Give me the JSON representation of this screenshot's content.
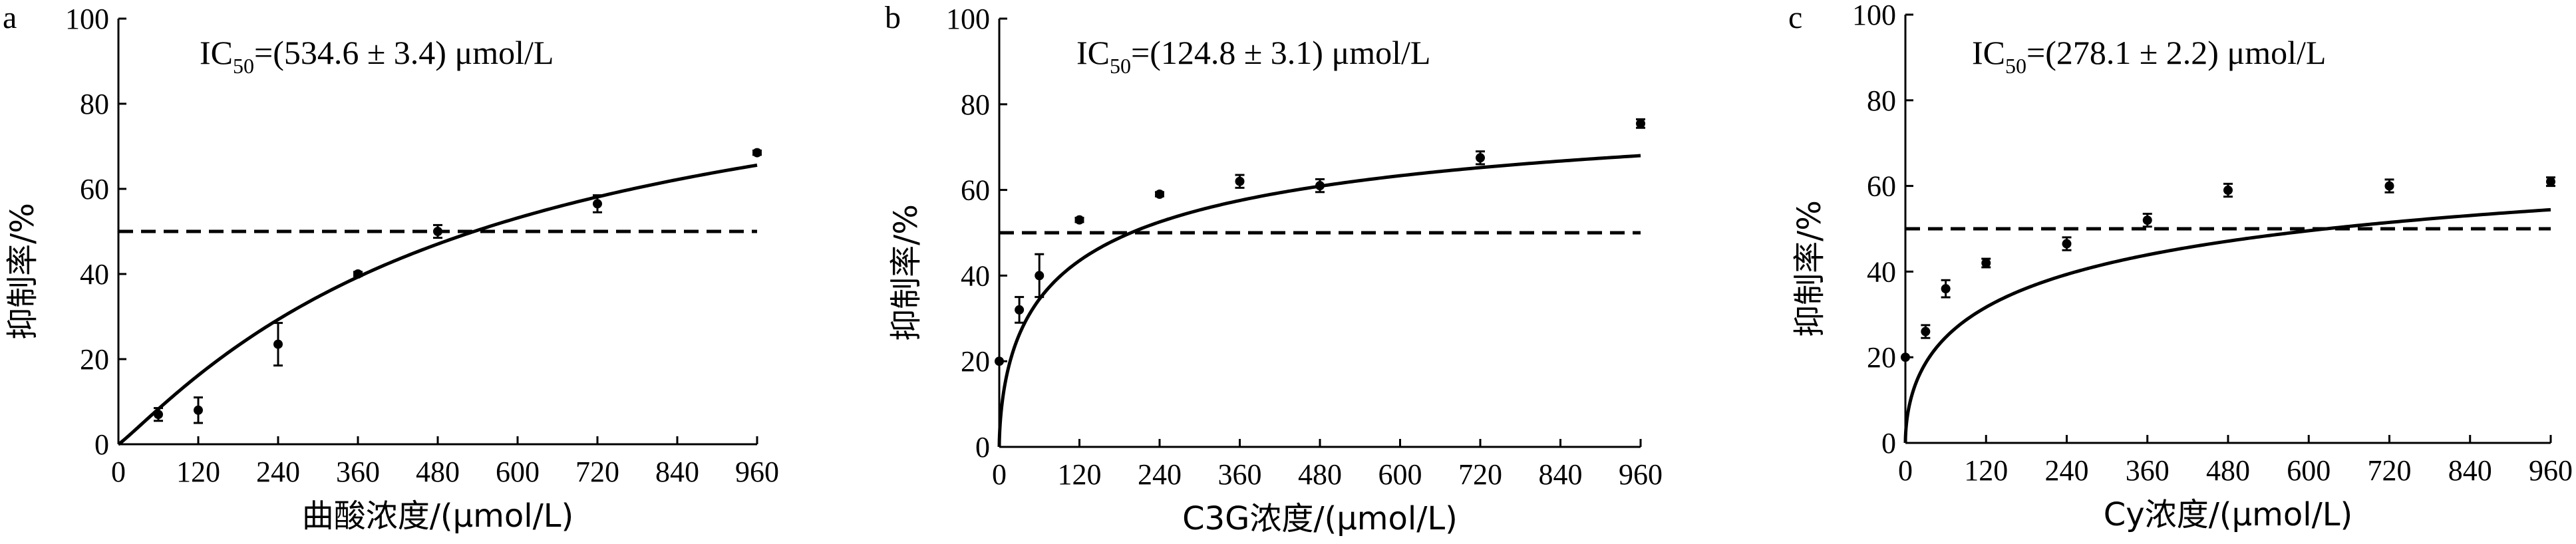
{
  "chart_data": [
    {
      "type": "scatter",
      "panel": "a",
      "annotation": {
        "prefix": "IC",
        "sub": "50",
        "text": "=(534.6 ± 3.4) μmol/L"
      },
      "xlabel": "曲酸浓度/(μmol/L)",
      "ylabel": "抑制率/%",
      "xlim": [
        0,
        960
      ],
      "ylim": [
        0,
        100
      ],
      "xticks": [
        "0",
        "120",
        "240",
        "360",
        "480",
        "600",
        "720",
        "840",
        "960"
      ],
      "yticks": [
        "0",
        "20",
        "40",
        "60",
        "80",
        "100"
      ],
      "reference_line": 50,
      "points": [
        {
          "x": 0,
          "y": 0,
          "err": 0
        },
        {
          "x": 60,
          "y": 7,
          "err": 1.5
        },
        {
          "x": 120,
          "y": 8,
          "err": 3
        },
        {
          "x": 240,
          "y": 23.5,
          "err": 5
        },
        {
          "x": 360,
          "y": 40,
          "err": 0.5
        },
        {
          "x": 480,
          "y": 50,
          "err": 1.5
        },
        {
          "x": 720,
          "y": 56.5,
          "err": 2
        },
        {
          "x": 960,
          "y": 68.5,
          "err": 0.5
        }
      ],
      "fit": {
        "kind": "hill",
        "ic50": 534.6,
        "n": 1.1,
        "max": 100
      }
    },
    {
      "type": "scatter",
      "panel": "b",
      "annotation": {
        "prefix": "IC",
        "sub": "50",
        "text": "=(124.8 ± 3.1) μmol/L"
      },
      "xlabel": "C3G浓度/(μmol/L)",
      "ylabel": "抑制率/%",
      "xlim": [
        0,
        960
      ],
      "ylim": [
        0,
        100
      ],
      "xticks": [
        "0",
        "120",
        "240",
        "360",
        "480",
        "600",
        "720",
        "840",
        "960"
      ],
      "yticks": [
        "0",
        "20",
        "40",
        "60",
        "80",
        "100"
      ],
      "reference_line": 50,
      "points": [
        {
          "x": 0,
          "y": 20,
          "err": 0
        },
        {
          "x": 30,
          "y": 32,
          "err": 3
        },
        {
          "x": 60,
          "y": 40,
          "err": 5
        },
        {
          "x": 120,
          "y": 53,
          "err": 0.5
        },
        {
          "x": 240,
          "y": 59,
          "err": 0.5
        },
        {
          "x": 360,
          "y": 62,
          "err": 1.5
        },
        {
          "x": 480,
          "y": 61,
          "err": 1.5
        },
        {
          "x": 720,
          "y": 67.5,
          "err": 1.5
        },
        {
          "x": 960,
          "y": 75.5,
          "err": 1
        }
      ],
      "fit": {
        "kind": "hill",
        "ic50": 124.8,
        "n": 0.6,
        "max": 88
      }
    },
    {
      "type": "scatter",
      "panel": "c",
      "annotation": {
        "prefix": "IC",
        "sub": "50",
        "text": "=(278.1 ± 2.2) μmol/L"
      },
      "xlabel": "Cy浓度/(μmol/L)",
      "ylabel": "抑制率/%",
      "xlim": [
        0,
        960
      ],
      "ylim": [
        0,
        100
      ],
      "xticks": [
        "0",
        "120",
        "240",
        "360",
        "480",
        "600",
        "720",
        "840",
        "960"
      ],
      "yticks": [
        "0",
        "20",
        "40",
        "60",
        "80",
        "100"
      ],
      "reference_line": 50,
      "points": [
        {
          "x": 0,
          "y": 20,
          "err": 0
        },
        {
          "x": 30,
          "y": 26,
          "err": 1.5
        },
        {
          "x": 60,
          "y": 36,
          "err": 2
        },
        {
          "x": 120,
          "y": 42,
          "err": 1
        },
        {
          "x": 240,
          "y": 46.5,
          "err": 1.5
        },
        {
          "x": 360,
          "y": 52,
          "err": 1.5
        },
        {
          "x": 480,
          "y": 59,
          "err": 1.5
        },
        {
          "x": 720,
          "y": 60,
          "err": 1.5
        },
        {
          "x": 960,
          "y": 61,
          "err": 1
        }
      ],
      "fit": {
        "kind": "hill",
        "ic50": 278.1,
        "n": 0.55,
        "max": 82
      }
    }
  ]
}
